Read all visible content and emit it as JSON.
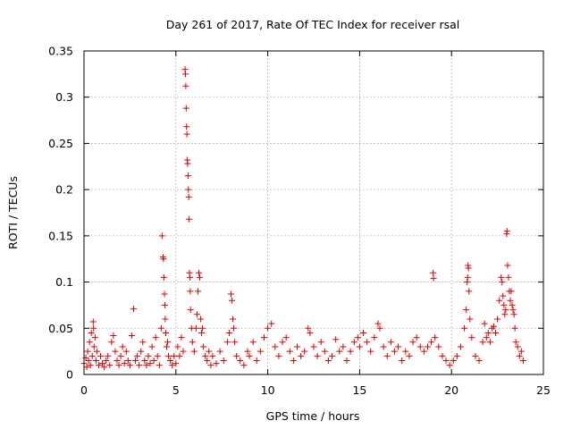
{
  "chart_data": {
    "type": "scatter",
    "title": "Day 261 of 2017, Rate Of TEC Index for receiver rsal",
    "xlabel": "GPS time / hours",
    "ylabel": "ROTI / TECUs",
    "xlim": [
      0,
      25
    ],
    "ylim": [
      0,
      0.35
    ],
    "xticks": [
      0,
      5,
      10,
      15,
      20,
      25
    ],
    "xtick_labels": [
      "0",
      "5",
      "10",
      "15",
      "20",
      "25"
    ],
    "yticks": [
      0,
      0.05,
      0.1,
      0.15,
      0.2,
      0.25,
      0.3,
      0.35
    ],
    "ytick_labels": [
      "0",
      "0.05",
      "0.1",
      "0.15",
      "0.2",
      "0.25",
      "0.3",
      "0.35"
    ],
    "grid": true,
    "marker": "+",
    "marker_color": "#e00000",
    "series": [
      {
        "name": "ROTI",
        "points": [
          [
            0.0,
            0.012
          ],
          [
            0.1,
            0.018
          ],
          [
            0.15,
            0.008
          ],
          [
            0.2,
            0.025
          ],
          [
            0.25,
            0.015
          ],
          [
            0.3,
            0.035
          ],
          [
            0.35,
            0.01
          ],
          [
            0.4,
            0.045
          ],
          [
            0.45,
            0.02
          ],
          [
            0.5,
            0.057
          ],
          [
            0.52,
            0.05
          ],
          [
            0.55,
            0.03
          ],
          [
            0.6,
            0.04
          ],
          [
            0.65,
            0.015
          ],
          [
            0.7,
            0.025
          ],
          [
            0.8,
            0.01
          ],
          [
            0.9,
            0.02
          ],
          [
            1.0,
            0.012
          ],
          [
            1.1,
            0.008
          ],
          [
            1.2,
            0.015
          ],
          [
            1.3,
            0.02
          ],
          [
            1.4,
            0.01
          ],
          [
            1.5,
            0.035
          ],
          [
            1.6,
            0.042
          ],
          [
            1.7,
            0.025
          ],
          [
            1.8,
            0.015
          ],
          [
            1.9,
            0.01
          ],
          [
            2.0,
            0.02
          ],
          [
            2.1,
            0.03
          ],
          [
            2.2,
            0.012
          ],
          [
            2.3,
            0.025
          ],
          [
            2.4,
            0.015
          ],
          [
            2.5,
            0.01
          ],
          [
            2.6,
            0.042
          ],
          [
            2.7,
            0.071
          ],
          [
            2.8,
            0.015
          ],
          [
            2.9,
            0.02
          ],
          [
            3.0,
            0.01
          ],
          [
            3.1,
            0.025
          ],
          [
            3.2,
            0.035
          ],
          [
            3.3,
            0.015
          ],
          [
            3.4,
            0.01
          ],
          [
            3.5,
            0.02
          ],
          [
            3.6,
            0.012
          ],
          [
            3.7,
            0.03
          ],
          [
            3.8,
            0.015
          ],
          [
            3.9,
            0.04
          ],
          [
            4.0,
            0.02
          ],
          [
            4.1,
            0.01
          ],
          [
            4.2,
            0.05
          ],
          [
            4.25,
            0.15
          ],
          [
            4.3,
            0.127
          ],
          [
            4.32,
            0.125
          ],
          [
            4.35,
            0.105
          ],
          [
            4.38,
            0.087
          ],
          [
            4.4,
            0.075
          ],
          [
            4.42,
            0.06
          ],
          [
            4.45,
            0.045
          ],
          [
            4.5,
            0.03
          ],
          [
            4.55,
            0.035
          ],
          [
            4.6,
            0.02
          ],
          [
            4.7,
            0.015
          ],
          [
            4.8,
            0.01
          ],
          [
            4.9,
            0.02
          ],
          [
            5.0,
            0.012
          ],
          [
            5.1,
            0.03
          ],
          [
            5.2,
            0.02
          ],
          [
            5.3,
            0.04
          ],
          [
            5.4,
            0.025
          ],
          [
            5.5,
            0.33
          ],
          [
            5.52,
            0.325
          ],
          [
            5.54,
            0.312
          ],
          [
            5.56,
            0.288
          ],
          [
            5.58,
            0.268
          ],
          [
            5.6,
            0.26
          ],
          [
            5.62,
            0.232
          ],
          [
            5.64,
            0.228
          ],
          [
            5.66,
            0.215
          ],
          [
            5.68,
            0.2
          ],
          [
            5.7,
            0.192
          ],
          [
            5.72,
            0.168
          ],
          [
            5.74,
            0.11
          ],
          [
            5.76,
            0.105
          ],
          [
            5.78,
            0.09
          ],
          [
            5.8,
            0.07
          ],
          [
            5.85,
            0.05
          ],
          [
            5.9,
            0.035
          ],
          [
            6.0,
            0.025
          ],
          [
            6.1,
            0.05
          ],
          [
            6.15,
            0.065
          ],
          [
            6.2,
            0.09
          ],
          [
            6.25,
            0.11
          ],
          [
            6.3,
            0.105
          ],
          [
            6.35,
            0.06
          ],
          [
            6.4,
            0.045
          ],
          [
            6.45,
            0.05
          ],
          [
            6.5,
            0.03
          ],
          [
            6.6,
            0.02
          ],
          [
            6.7,
            0.015
          ],
          [
            6.8,
            0.025
          ],
          [
            6.9,
            0.01
          ],
          [
            7.0,
            0.02
          ],
          [
            7.2,
            0.012
          ],
          [
            7.4,
            0.025
          ],
          [
            7.6,
            0.015
          ],
          [
            7.8,
            0.035
          ],
          [
            7.9,
            0.045
          ],
          [
            8.0,
            0.087
          ],
          [
            8.05,
            0.08
          ],
          [
            8.1,
            0.06
          ],
          [
            8.15,
            0.05
          ],
          [
            8.2,
            0.035
          ],
          [
            8.3,
            0.02
          ],
          [
            8.5,
            0.015
          ],
          [
            8.7,
            0.01
          ],
          [
            8.9,
            0.025
          ],
          [
            9.0,
            0.02
          ],
          [
            9.2,
            0.035
          ],
          [
            9.4,
            0.015
          ],
          [
            9.6,
            0.025
          ],
          [
            9.8,
            0.04
          ],
          [
            10.0,
            0.05
          ],
          [
            10.2,
            0.055
          ],
          [
            10.4,
            0.03
          ],
          [
            10.6,
            0.02
          ],
          [
            10.8,
            0.035
          ],
          [
            11.0,
            0.04
          ],
          [
            11.2,
            0.025
          ],
          [
            11.4,
            0.015
          ],
          [
            11.6,
            0.03
          ],
          [
            11.8,
            0.02
          ],
          [
            12.0,
            0.025
          ],
          [
            12.2,
            0.05
          ],
          [
            12.3,
            0.045
          ],
          [
            12.5,
            0.03
          ],
          [
            12.7,
            0.02
          ],
          [
            12.9,
            0.035
          ],
          [
            13.1,
            0.025
          ],
          [
            13.3,
            0.015
          ],
          [
            13.5,
            0.02
          ],
          [
            13.7,
            0.038
          ],
          [
            13.9,
            0.025
          ],
          [
            14.1,
            0.03
          ],
          [
            14.3,
            0.015
          ],
          [
            14.5,
            0.025
          ],
          [
            14.7,
            0.035
          ],
          [
            14.9,
            0.04
          ],
          [
            15.0,
            0.03
          ],
          [
            15.2,
            0.045
          ],
          [
            15.4,
            0.035
          ],
          [
            15.6,
            0.025
          ],
          [
            15.8,
            0.04
          ],
          [
            16.0,
            0.055
          ],
          [
            16.1,
            0.05
          ],
          [
            16.3,
            0.03
          ],
          [
            16.5,
            0.02
          ],
          [
            16.7,
            0.035
          ],
          [
            16.9,
            0.025
          ],
          [
            17.1,
            0.03
          ],
          [
            17.3,
            0.015
          ],
          [
            17.5,
            0.025
          ],
          [
            17.7,
            0.02
          ],
          [
            17.9,
            0.035
          ],
          [
            18.1,
            0.04
          ],
          [
            18.3,
            0.03
          ],
          [
            18.5,
            0.025
          ],
          [
            18.7,
            0.03
          ],
          [
            18.9,
            0.035
          ],
          [
            19.0,
            0.11
          ],
          [
            19.02,
            0.104
          ],
          [
            19.1,
            0.04
          ],
          [
            19.3,
            0.03
          ],
          [
            19.5,
            0.02
          ],
          [
            19.7,
            0.015
          ],
          [
            19.9,
            0.01
          ],
          [
            20.1,
            0.015
          ],
          [
            20.3,
            0.02
          ],
          [
            20.5,
            0.03
          ],
          [
            20.7,
            0.05
          ],
          [
            20.8,
            0.07
          ],
          [
            20.85,
            0.1
          ],
          [
            20.88,
            0.105
          ],
          [
            20.9,
            0.118
          ],
          [
            20.92,
            0.115
          ],
          [
            20.95,
            0.09
          ],
          [
            21.0,
            0.06
          ],
          [
            21.1,
            0.04
          ],
          [
            21.3,
            0.02
          ],
          [
            21.5,
            0.015
          ],
          [
            21.7,
            0.035
          ],
          [
            21.8,
            0.055
          ],
          [
            21.9,
            0.04
          ],
          [
            22.0,
            0.045
          ],
          [
            22.1,
            0.035
          ],
          [
            22.2,
            0.05
          ],
          [
            22.3,
            0.052
          ],
          [
            22.4,
            0.045
          ],
          [
            22.5,
            0.06
          ],
          [
            22.6,
            0.08
          ],
          [
            22.7,
            0.105
          ],
          [
            22.75,
            0.1
          ],
          [
            22.8,
            0.085
          ],
          [
            22.85,
            0.075
          ],
          [
            22.9,
            0.065
          ],
          [
            22.95,
            0.07
          ],
          [
            23.0,
            0.152
          ],
          [
            23.02,
            0.155
          ],
          [
            23.05,
            0.118
          ],
          [
            23.1,
            0.105
          ],
          [
            23.15,
            0.09
          ],
          [
            23.2,
            0.08
          ],
          [
            23.25,
            0.09
          ],
          [
            23.3,
            0.075
          ],
          [
            23.35,
            0.07
          ],
          [
            23.4,
            0.065
          ],
          [
            23.45,
            0.05
          ],
          [
            23.5,
            0.035
          ],
          [
            23.6,
            0.03
          ],
          [
            23.7,
            0.02
          ],
          [
            23.8,
            0.025
          ],
          [
            23.9,
            0.015
          ]
        ]
      }
    ]
  }
}
